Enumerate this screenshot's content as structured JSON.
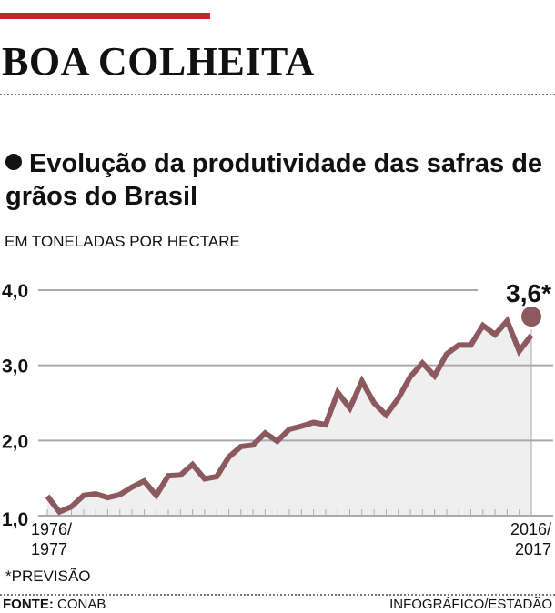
{
  "header": {
    "title": "BOA COLHEITA",
    "subtitle": "Evolução da produtividade das safras de grãos do Brasil",
    "unit": "EM TONELADAS POR HECTARE"
  },
  "footer": {
    "note": "*PREVISÃO",
    "source_label": "FONTE:",
    "source": "CONAB",
    "credit": "INFOGRÁFICO/ESTADÃO"
  },
  "colors": {
    "accent": "#c0272d",
    "line": "#8c5a5e",
    "area": "#efefef",
    "grid": "#aaaaaa"
  },
  "chart_data": {
    "type": "line",
    "title": "Evolução da produtividade das safras de grãos do Brasil",
    "ylabel": "EM TONELADAS POR HECTARE",
    "ylim": [
      1.0,
      4.0
    ],
    "yticks": [
      "1,0",
      "2,0",
      "3,0",
      "4,0"
    ],
    "ytick_values": [
      1.0,
      2.0,
      3.0,
      4.0
    ],
    "xtick_labels": [
      [
        "1976/",
        "1977"
      ],
      [
        "2016/",
        "2017"
      ]
    ],
    "grid": true,
    "area_fill": true,
    "x": [
      "1976/77",
      "1977/78",
      "1978/79",
      "1979/80",
      "1980/81",
      "1981/82",
      "1982/83",
      "1983/84",
      "1984/85",
      "1985/86",
      "1986/87",
      "1987/88",
      "1988/89",
      "1989/90",
      "1990/91",
      "1991/92",
      "1992/93",
      "1993/94",
      "1994/95",
      "1995/96",
      "1996/97",
      "1997/98",
      "1998/99",
      "1999/00",
      "2000/01",
      "2001/02",
      "2002/03",
      "2003/04",
      "2004/05",
      "2005/06",
      "2006/07",
      "2007/08",
      "2008/09",
      "2009/10",
      "2010/11",
      "2011/12",
      "2012/13",
      "2013/14",
      "2014/15",
      "2015/16",
      "2016/17"
    ],
    "values": [
      1.26,
      1.05,
      1.12,
      1.27,
      1.29,
      1.24,
      1.28,
      1.38,
      1.46,
      1.27,
      1.53,
      1.54,
      1.68,
      1.49,
      1.52,
      1.78,
      1.92,
      1.94,
      2.1,
      1.99,
      2.15,
      2.19,
      2.24,
      2.21,
      2.64,
      2.43,
      2.79,
      2.5,
      2.34,
      2.56,
      2.85,
      3.03,
      2.86,
      3.15,
      3.27,
      3.27,
      3.53,
      3.41,
      3.59,
      3.19,
      3.6
    ],
    "annotation": {
      "text": "3,6*",
      "x": "2016/17",
      "value": 3.6
    }
  }
}
